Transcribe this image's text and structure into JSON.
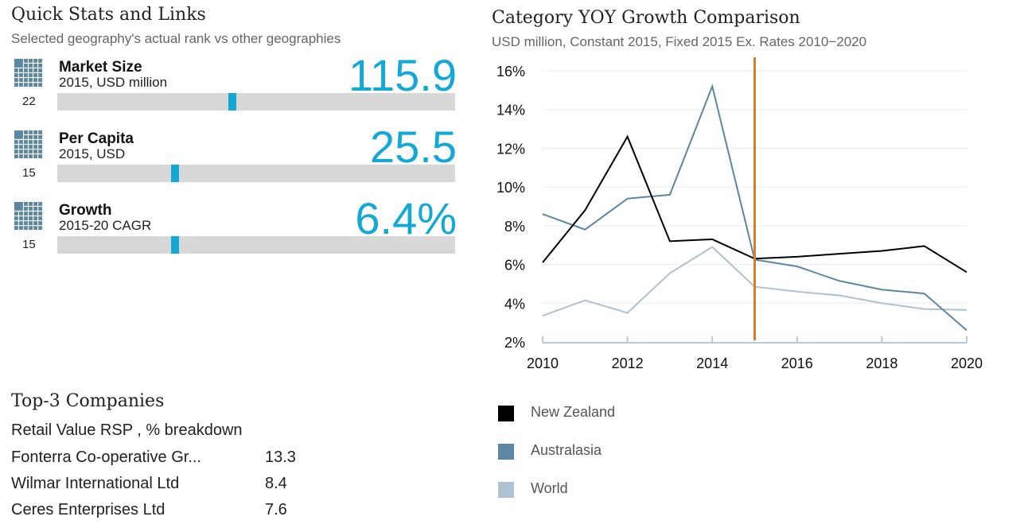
{
  "quick_stats": {
    "title": "Quick Stats and Links",
    "subtitle": "Selected geography's actual rank vs other geographies",
    "items": [
      {
        "label": "Market Size",
        "sublabel": "2015, USD million",
        "value": "115.9",
        "rank": "22",
        "position": 0.44
      },
      {
        "label": "Per Capita",
        "sublabel": "2015, USD",
        "value": "25.5",
        "rank": "15",
        "position": 0.295
      },
      {
        "label": "Growth",
        "sublabel": "2015-20 CAGR",
        "value": "6.4%",
        "rank": "15",
        "position": 0.295
      }
    ]
  },
  "companies": {
    "title": "Top-3 Companies",
    "subtitle": "Retail Value RSP , % breakdown",
    "rows": [
      {
        "name": "Fonterra Co-operative Gr...",
        "value": "13.3"
      },
      {
        "name": "Wilmar International Ltd",
        "value": "8.4"
      },
      {
        "name": "Ceres Enterprises Ltd",
        "value": "7.6"
      }
    ]
  },
  "chart_data": {
    "type": "line",
    "title": "Category YOY Growth Comparison",
    "subtitle": "USD million, Constant 2015, Fixed 2015 Ex. Rates  2010−2020",
    "x": [
      2010,
      2011,
      2012,
      2013,
      2014,
      2015,
      2016,
      2017,
      2018,
      2019,
      2020
    ],
    "xticks": [
      "2010",
      "2012",
      "2014",
      "2016",
      "2018",
      "2020"
    ],
    "yticks": [
      "2%",
      "4%",
      "6%",
      "8%",
      "10%",
      "12%",
      "14%",
      "16%"
    ],
    "ylim": [
      2,
      16
    ],
    "marker_year": 2015,
    "marker_color": "#e07b28",
    "series": [
      {
        "name": "New Zealand",
        "color": "#000000",
        "values": [
          6.1,
          8.8,
          12.6,
          7.2,
          7.3,
          6.3,
          6.4,
          6.55,
          6.7,
          6.95,
          5.6
        ]
      },
      {
        "name": "Australasia",
        "color": "#5b87a3",
        "values": [
          8.6,
          7.8,
          9.4,
          9.6,
          15.2,
          6.25,
          5.9,
          5.15,
          4.7,
          4.5,
          2.6
        ]
      },
      {
        "name": "World",
        "color": "#aec2d1",
        "values": [
          3.35,
          4.15,
          3.5,
          5.55,
          6.9,
          4.85,
          4.6,
          4.4,
          4.0,
          3.7,
          3.65
        ]
      }
    ]
  }
}
